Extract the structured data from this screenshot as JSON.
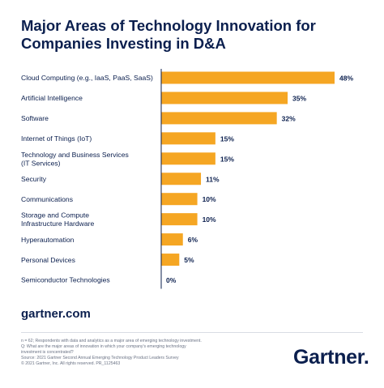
{
  "title_lines": [
    "Major Areas of Technology Innovation for",
    "Companies Investing in D&A"
  ],
  "site": "gartner.com",
  "brand": "Gartner",
  "brand_mark": ".",
  "footnotes": [
    "n = 62; Respondents with data and analytics as a major area of emerging technology investment.",
    "Q: What are the major areas of innovation in which your company's emerging technology",
    "investment is concentrated?",
    "Source: 2021 Gartner Second Annual Emerging Technology Product Leaders Survey",
    "© 2021 Gartner, Inc. All rights reserved. PR_1125463"
  ],
  "colors": {
    "bar": "#f5a623",
    "text": "#0b1f4e",
    "axis": "#0b1f4e"
  },
  "chart_data": {
    "type": "bar",
    "orientation": "horizontal",
    "title": "Major Areas of Technology Innovation for Companies Investing in D&A",
    "xlabel": "",
    "ylabel": "",
    "xlim": [
      0,
      48
    ],
    "grid": false,
    "categories": [
      [
        "Cloud Computing (e.g., IaaS, PaaS, SaaS)"
      ],
      [
        "Artificial Intelligence"
      ],
      [
        "Software"
      ],
      [
        "Internet of Things (IoT)"
      ],
      [
        "Technology and Business Services",
        "(IT Services)"
      ],
      [
        "Security"
      ],
      [
        "Communications"
      ],
      [
        "Storage and Compute",
        "Infrastructure Hardware"
      ],
      [
        "Hyperautomation"
      ],
      [
        "Personal Devices"
      ],
      [
        "Semiconductor Technologies"
      ]
    ],
    "values": [
      48,
      35,
      32,
      15,
      15,
      11,
      10,
      10,
      6,
      5,
      0
    ],
    "value_labels": [
      "48%",
      "35%",
      "32%",
      "15%",
      "15%",
      "11%",
      "10%",
      "10%",
      "6%",
      "5%",
      "0%"
    ]
  }
}
